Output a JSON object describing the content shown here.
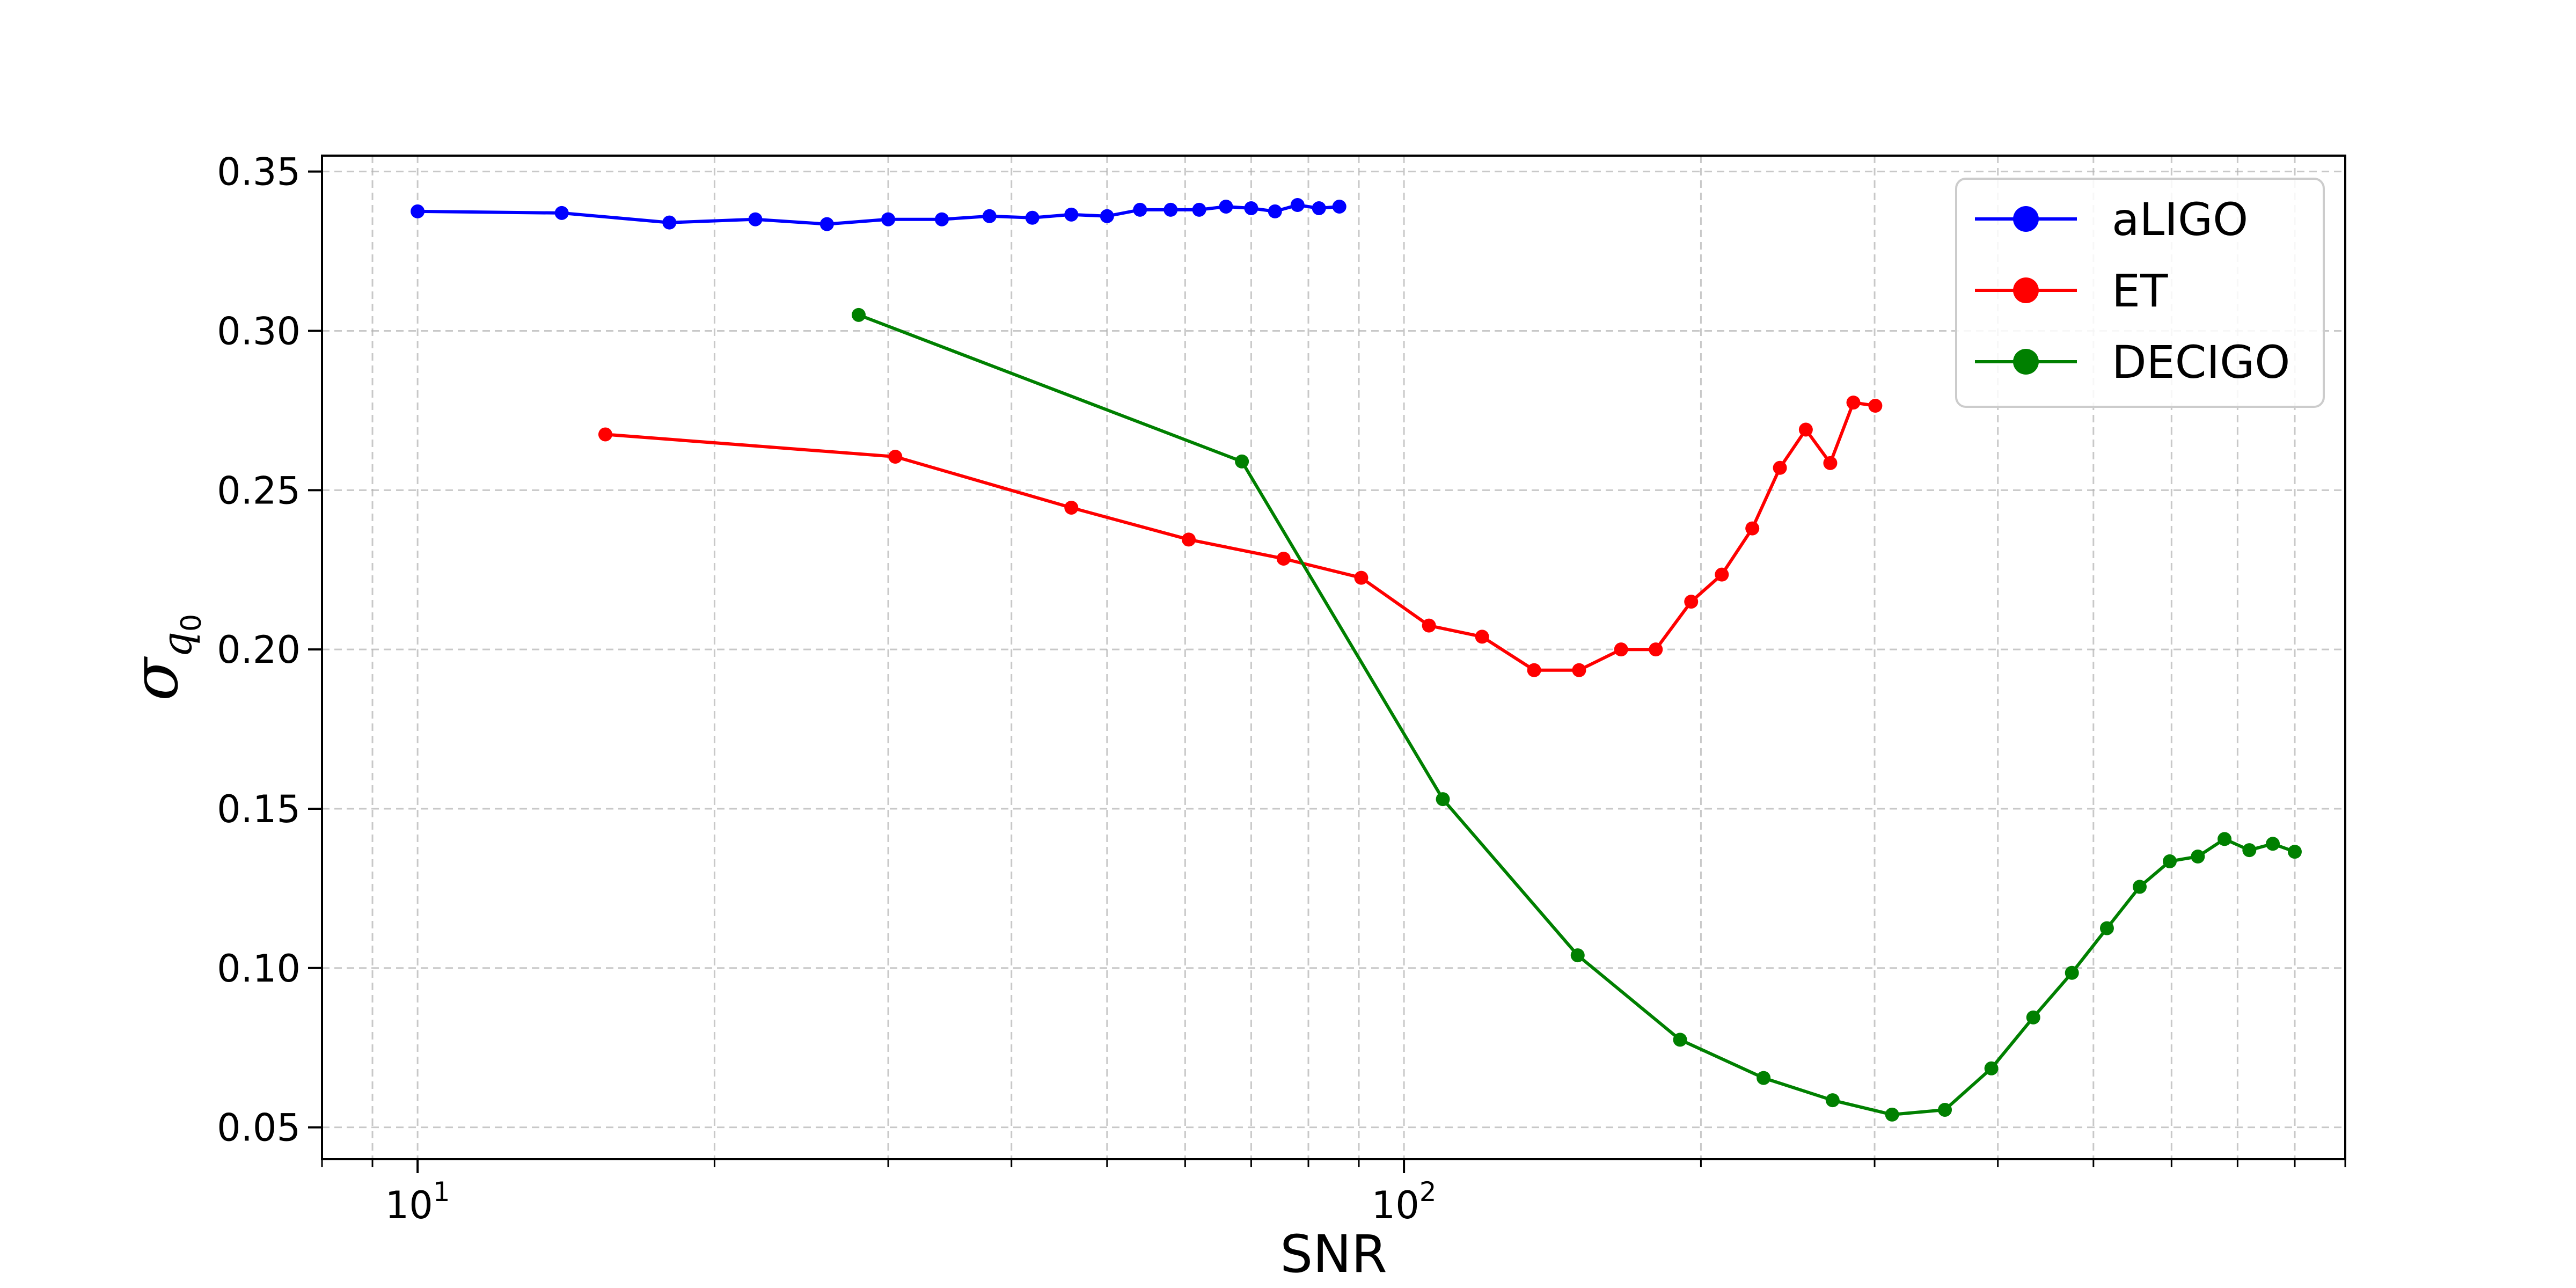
{
  "chart_data": {
    "type": "line",
    "xlabel": "SNR",
    "ylabel": "σ_{q_0}",
    "x_scale": "log",
    "xlim": [
      8.0,
      900
    ],
    "ylim": [
      0.04,
      0.355
    ],
    "x_tick_labels": [
      {
        "value": 10,
        "base": "10",
        "exp": "1"
      },
      {
        "value": 100,
        "base": "10",
        "exp": "2"
      }
    ],
    "y_ticks": [
      0.05,
      0.1,
      0.15,
      0.2,
      0.25,
      0.3,
      0.35
    ],
    "y_tick_labels": [
      "0.05",
      "0.10",
      "0.15",
      "0.20",
      "0.25",
      "0.30",
      "0.35"
    ],
    "grid": true,
    "legend_position": "top-right",
    "series": [
      {
        "name": "aLIGO",
        "color": "#0000ff",
        "points": [
          [
            10.0,
            0.3375
          ],
          [
            14.0,
            0.337
          ],
          [
            18.0,
            0.334
          ],
          [
            22.0,
            0.335
          ],
          [
            26.0,
            0.3335
          ],
          [
            30.0,
            0.335
          ],
          [
            34.0,
            0.335
          ],
          [
            38.0,
            0.336
          ],
          [
            42.0,
            0.3355
          ],
          [
            46.0,
            0.3365
          ],
          [
            50.0,
            0.336
          ],
          [
            54.0,
            0.338
          ],
          [
            58.0,
            0.338
          ],
          [
            62.0,
            0.338
          ],
          [
            66.0,
            0.339
          ],
          [
            70.0,
            0.3385
          ],
          [
            74.0,
            0.3375
          ],
          [
            78.0,
            0.3395
          ],
          [
            82.0,
            0.3385
          ],
          [
            86.0,
            0.339
          ]
        ]
      },
      {
        "name": "ET",
        "color": "#ff0000",
        "points": [
          [
            15.5,
            0.2675
          ],
          [
            30.5,
            0.2605
          ],
          [
            46.0,
            0.2445
          ],
          [
            60.5,
            0.2345
          ],
          [
            75.5,
            0.2285
          ],
          [
            90.5,
            0.2225
          ],
          [
            106.0,
            0.2075
          ],
          [
            120.0,
            0.204
          ],
          [
            135.5,
            0.1935
          ],
          [
            150.5,
            0.1935
          ],
          [
            166.0,
            0.2
          ],
          [
            180.0,
            0.2
          ],
          [
            195.5,
            0.215
          ],
          [
            210.0,
            0.2235
          ],
          [
            225.5,
            0.238
          ],
          [
            240.5,
            0.257
          ],
          [
            255.5,
            0.269
          ],
          [
            270.5,
            0.2585
          ],
          [
            285.5,
            0.2775
          ],
          [
            300.5,
            0.2765
          ]
        ]
      },
      {
        "name": "DECIGO",
        "color": "#008000",
        "points": [
          [
            28.0,
            0.305
          ],
          [
            68.5,
            0.259
          ],
          [
            109.5,
            0.153
          ],
          [
            150.0,
            0.104
          ],
          [
            190.5,
            0.0775
          ],
          [
            231.5,
            0.0655
          ],
          [
            272.0,
            0.0585
          ],
          [
            312.5,
            0.054
          ],
          [
            353.5,
            0.0555
          ],
          [
            394.0,
            0.0685
          ],
          [
            434.5,
            0.0845
          ],
          [
            475.5,
            0.0985
          ],
          [
            516.0,
            0.1125
          ],
          [
            557.0,
            0.1255
          ],
          [
            597.5,
            0.1335
          ],
          [
            638.0,
            0.135
          ],
          [
            679.0,
            0.1405
          ],
          [
            719.5,
            0.137
          ],
          [
            760.0,
            0.139
          ],
          [
            800.0,
            0.1365
          ]
        ]
      }
    ]
  }
}
